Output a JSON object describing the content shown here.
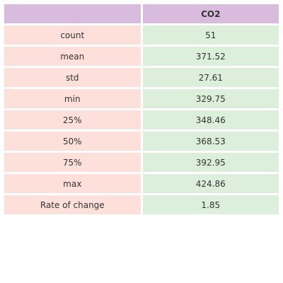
{
  "chart_data": {
    "type": "table",
    "columns": [
      "",
      "CO2"
    ],
    "rows": [
      {
        "stat": "count",
        "value": "51"
      },
      {
        "stat": "mean",
        "value": "371.52"
      },
      {
        "stat": "std",
        "value": "27.61"
      },
      {
        "stat": "min",
        "value": "329.75"
      },
      {
        "stat": "25%",
        "value": "348.46"
      },
      {
        "stat": "50%",
        "value": "368.53"
      },
      {
        "stat": "75%",
        "value": "392.95"
      },
      {
        "stat": "max",
        "value": "424.86"
      },
      {
        "stat": "Rate of change",
        "value": "1.85"
      }
    ]
  },
  "colors": {
    "header_bg": "#d9bcdd",
    "label_bg": "#fde0da",
    "value_bg": "#dcefda"
  }
}
